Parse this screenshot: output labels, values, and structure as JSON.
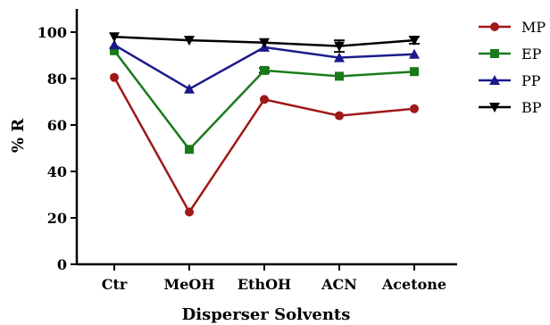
{
  "chart_data": {
    "type": "line",
    "categories": [
      "Ctr",
      "MeOH",
      "EthOH",
      "ACN",
      "Acetone"
    ],
    "xlabel": "Disperser Solvents",
    "ylabel": "% R",
    "ylim": [
      0,
      110
    ],
    "yticks": [
      0,
      20,
      40,
      60,
      80,
      100
    ],
    "grid": false,
    "legend_position": "right",
    "series": [
      {
        "name": "MP",
        "color": "#a01818",
        "marker": "circle",
        "values": [
          80.5,
          22.5,
          71,
          64,
          67
        ],
        "err": [
          0,
          0,
          0,
          0,
          0
        ]
      },
      {
        "name": "EP",
        "color": "#1a7a1a",
        "marker": "square",
        "values": [
          92,
          49.5,
          83.5,
          81,
          83
        ],
        "err": [
          0,
          0,
          1.0,
          0,
          0
        ]
      },
      {
        "name": "PP",
        "color": "#1a1a8c",
        "marker": "triangle",
        "values": [
          94.5,
          75.5,
          93.5,
          89,
          90.5
        ],
        "err": [
          0,
          0,
          0,
          0,
          0
        ]
      },
      {
        "name": "BP",
        "color": "#000000",
        "marker": "triangle-down",
        "values": [
          98,
          96.5,
          95.5,
          94,
          96.5
        ],
        "err": [
          0,
          0,
          0,
          2.5,
          1.5
        ]
      }
    ]
  }
}
